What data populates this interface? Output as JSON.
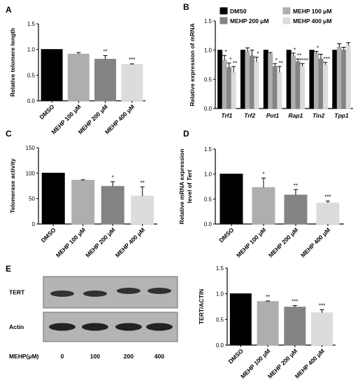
{
  "chart_data": [
    {
      "panel": "A",
      "type": "bar",
      "ylabel": "Relative telomere length",
      "categories": [
        "DMSO",
        "MEHP 100 μM",
        "MEHP 200 μM",
        "MEHP 400 μM"
      ],
      "values": [
        1.0,
        0.91,
        0.81,
        0.71
      ],
      "errors": [
        0,
        0.03,
        0.07,
        0.01
      ],
      "significance": [
        "",
        "",
        "**",
        "***"
      ],
      "colors": [
        "#000000",
        "#aeaeae",
        "#848484",
        "#dcdcdc"
      ],
      "ylim": [
        0,
        1.5
      ],
      "yticks": [
        0.0,
        0.5,
        1.0,
        1.5
      ],
      "tick_decimals": 1
    },
    {
      "panel": "B",
      "type": "bar",
      "ylabel": "Relative expression of mRNA",
      "categories": [
        "Trf1",
        "Trf2",
        "Pot1",
        "Rap1",
        "Tin2",
        "Tpp1"
      ],
      "series": [
        {
          "name": "DMS0",
          "color": "#000000",
          "values": [
            1.0,
            1.0,
            1.0,
            1.0,
            1.0,
            1.0
          ],
          "errors": [
            0.0,
            0.0,
            0.0,
            0.0,
            0.0,
            0.0
          ]
        },
        {
          "name": "MEHP 100 μM",
          "color": "#aeaeae",
          "values": [
            0.83,
            0.98,
            0.93,
            0.9,
            0.95,
            1.05
          ],
          "errors": [
            0.08,
            0.06,
            0.03,
            0.05,
            0.03,
            0.06
          ]
        },
        {
          "name": "MEHP 200 μM",
          "color": "#848484",
          "values": [
            0.7,
            0.9,
            0.72,
            0.8,
            0.85,
            1.0
          ],
          "errors": [
            0.08,
            0.1,
            0.05,
            0.05,
            0.08,
            0.05
          ]
        },
        {
          "name": "MEHP 400 μM",
          "color": "#dcdcdc",
          "values": [
            0.62,
            0.8,
            0.62,
            0.72,
            0.75,
            1.08
          ],
          "errors": [
            0.1,
            0.08,
            0.1,
            0.05,
            0.04,
            0.05
          ]
        }
      ],
      "significance": [
        [
          "",
          "*",
          "*",
          "**"
        ],
        [
          "",
          "",
          "",
          "*"
        ],
        [
          "",
          "",
          "*",
          "**"
        ],
        [
          "",
          "*",
          "**",
          "****"
        ],
        [
          "",
          "*",
          "",
          "***"
        ],
        [
          "",
          "",
          "",
          ""
        ]
      ],
      "ylim": [
        0,
        1.5
      ],
      "yticks": [
        0.0,
        0.5,
        1.0,
        1.5
      ],
      "tick_decimals": 1,
      "legend": "top"
    },
    {
      "panel": "C",
      "type": "bar",
      "ylabel": "Telomerase activity",
      "categories": [
        "DMSO",
        "MEHP 100 μM",
        "MEHP 200 μM",
        "MEHP 400 μM"
      ],
      "values": [
        100,
        86,
        74,
        55
      ],
      "errors": [
        0,
        1,
        9,
        18
      ],
      "significance": [
        "",
        "",
        "*",
        "**"
      ],
      "colors": [
        "#000000",
        "#aeaeae",
        "#848484",
        "#dcdcdc"
      ],
      "ylim": [
        0,
        150
      ],
      "yticks": [
        0,
        50,
        100,
        150
      ],
      "tick_decimals": 0
    },
    {
      "panel": "D",
      "type": "bar",
      "ylabel": [
        "Relative mRNA expression",
        "level of Tert"
      ],
      "categories": [
        "DMSO",
        "MEHP 100 μM",
        "MEHP 200 μM",
        "MEHP 400 μM"
      ],
      "values": [
        1.0,
        0.73,
        0.58,
        0.42
      ],
      "errors": [
        0,
        0.19,
        0.11,
        0.04
      ],
      "significance": [
        "",
        "*",
        "**",
        "***"
      ],
      "colors": [
        "#000000",
        "#aeaeae",
        "#848484",
        "#dcdcdc"
      ],
      "ylim": [
        0,
        1.5
      ],
      "yticks": [
        0.0,
        0.5,
        1.0,
        1.5
      ],
      "tick_decimals": 1
    },
    {
      "panel": "E",
      "type": "bar",
      "ylabel": "TERT/ACTIN",
      "categories": [
        "DMSO",
        "MEHP 100 μM",
        "MEHP 200 μM",
        "MEHP 400 μM"
      ],
      "values": [
        1.0,
        0.85,
        0.74,
        0.63
      ],
      "errors": [
        0,
        0.01,
        0.03,
        0.06
      ],
      "significance": [
        "",
        "**",
        "***",
        "***"
      ],
      "colors": [
        "#000000",
        "#aeaeae",
        "#848484",
        "#dcdcdc"
      ],
      "ylim": [
        0,
        1.5
      ],
      "yticks": [
        0.0,
        0.5,
        1.0,
        1.5
      ],
      "tick_decimals": 1
    }
  ],
  "panel_letters": [
    "A",
    "B",
    "C",
    "D",
    "E"
  ],
  "blot": {
    "rows": [
      "TERT",
      "Actin"
    ],
    "axis_label": "MEHP(μM)",
    "lanes": [
      "0",
      "100",
      "200",
      "400"
    ]
  }
}
